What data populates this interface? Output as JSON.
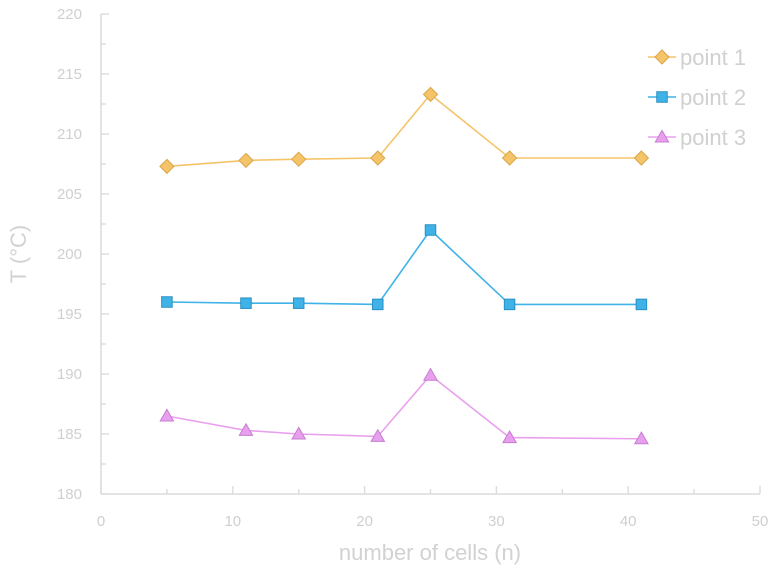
{
  "chart_data": {
    "type": "line",
    "title": "",
    "xlabel": "number of cells (n)",
    "ylabel": "T (°C)",
    "xlim": [
      0,
      50
    ],
    "ylim": [
      180,
      220
    ],
    "xticks": [
      "0",
      "10",
      "20",
      "30",
      "40",
      "50"
    ],
    "yticks": [
      "180",
      "185",
      "190",
      "195",
      "200",
      "205",
      "210",
      "215",
      "220"
    ],
    "grid": false,
    "legend_position": "top-right",
    "series": [
      {
        "name": "point 1",
        "color": "#f5c469",
        "marker": "diamond",
        "x": [
          5,
          11,
          15,
          21,
          25,
          31,
          41
        ],
        "y": [
          207.3,
          207.8,
          207.9,
          208.0,
          213.3,
          208.0,
          208.0
        ]
      },
      {
        "name": "point 2",
        "color": "#3fb2e8",
        "marker": "square",
        "x": [
          5,
          11,
          15,
          21,
          25,
          31,
          41
        ],
        "y": [
          196.0,
          195.9,
          195.9,
          195.8,
          202.0,
          195.8,
          195.8
        ]
      },
      {
        "name": "point 3",
        "color": "#e8a0ee",
        "marker": "triangle",
        "x": [
          5,
          11,
          15,
          21,
          25,
          31,
          41
        ],
        "y": [
          186.5,
          185.3,
          185.0,
          184.8,
          189.9,
          184.7,
          184.6
        ]
      }
    ]
  }
}
